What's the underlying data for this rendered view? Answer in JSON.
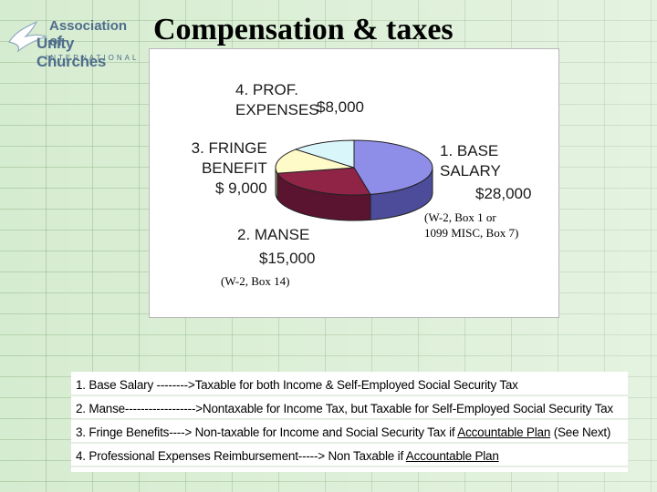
{
  "logo": {
    "line1": "Association of",
    "line2": "Unity Churches",
    "line3": "INTERNATIONAL"
  },
  "slide": {
    "title": "Compensation & taxes"
  },
  "chart_data": {
    "type": "pie",
    "categories": [
      "1. BASE SALARY",
      "2. MANSE",
      "3. FRINGE BENEFIT",
      "4. PROF. EXPENSES"
    ],
    "values": [
      28000,
      15000,
      9000,
      8000
    ],
    "value_labels": [
      "$28,000",
      "$15,000",
      "$ 9,000",
      "$8,000"
    ],
    "colors": [
      "#8e8ee8",
      "#8f2447",
      "#fffbc8",
      "#d9f6fb"
    ],
    "side_colors": [
      "#4c4c9a",
      "#5a1430",
      "#c8c290",
      "#9fc4c9"
    ],
    "label_lines": [
      [
        "1. BASE",
        "SALARY"
      ],
      [
        "2. MANSE"
      ],
      [
        "3. FRINGE",
        "BENEFIT"
      ],
      [
        "4. PROF.",
        "EXPENSES"
      ]
    ],
    "annotations": [
      [
        "(W-2, Box 1 or",
        "1099 MISC, Box 7)"
      ],
      [
        "(W-2, Box 14)"
      ]
    ]
  },
  "notes": {
    "lines": [
      {
        "text": "1. Base Salary -------->Taxable for both Income & Self-Employed Social Security Tax",
        "underline": ""
      },
      {
        "text": "2. Manse------------------>Nontaxable for Income Tax, but Taxable for Self-Employed Social Security Tax",
        "underline": ""
      },
      {
        "text": "3. Fringe Benefits----> Non-taxable for Income and Social Security Tax if ",
        "underline": "Accountable Plan",
        "after": " (See Next)"
      },
      {
        "text": "4. Professional Expenses Reimbursement-----> Non Taxable if ",
        "underline": "Accountable Plan",
        "after": ""
      }
    ]
  }
}
